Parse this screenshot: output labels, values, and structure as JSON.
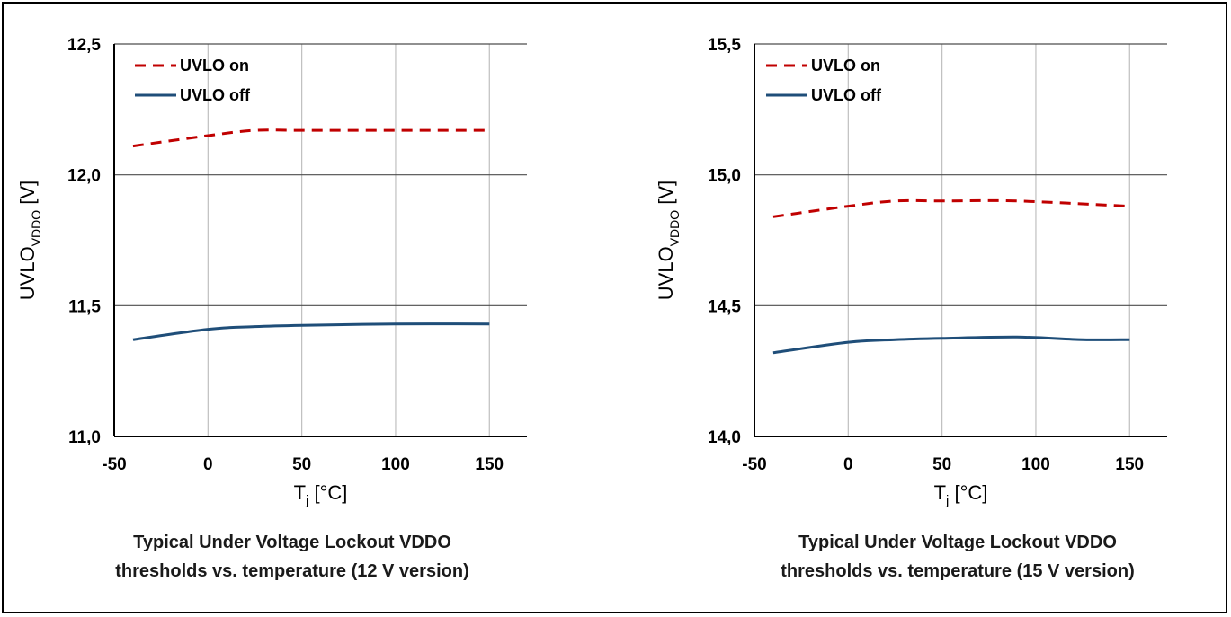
{
  "chart_data": [
    {
      "type": "line",
      "caption_line1": "Typical Under Voltage Lockout VDDO",
      "caption_line2": "thresholds vs. temperature (12 V version)",
      "ylabel_main": "UVLO",
      "ylabel_sub": "VDDO",
      "ylabel_unit": " [V]",
      "xlabel_main": "T",
      "xlabel_sub": "j",
      "xlabel_unit": " [°C]",
      "xlim": [
        -50,
        170
      ],
      "ylim": [
        11.0,
        12.5
      ],
      "xticks": [
        -50,
        0,
        50,
        100,
        150
      ],
      "xtick_labels": [
        "-50",
        "0",
        "50",
        "100",
        "150"
      ],
      "yticks": [
        11.0,
        11.5,
        12.0,
        12.5
      ],
      "ytick_labels": [
        "11,0",
        "11,5",
        "12,0",
        "12,5"
      ],
      "grid": "major",
      "legend_position": "top-left",
      "series": [
        {
          "name": "UVLO on",
          "color": "#c00000",
          "dash": "dashed",
          "x": [
            -40,
            0,
            25,
            50,
            100,
            150
          ],
          "y": [
            12.11,
            12.15,
            12.17,
            12.17,
            12.17,
            12.17
          ]
        },
        {
          "name": "UVLO off",
          "color": "#1f4e79",
          "dash": "solid",
          "x": [
            -40,
            0,
            25,
            50,
            100,
            150
          ],
          "y": [
            11.37,
            11.41,
            11.42,
            11.425,
            11.43,
            11.43
          ]
        }
      ]
    },
    {
      "type": "line",
      "caption_line1": "Typical Under Voltage Lockout VDDO",
      "caption_line2": "thresholds vs. temperature (15 V version)",
      "ylabel_main": "UVLO",
      "ylabel_sub": "VDDO",
      "ylabel_unit": " [V]",
      "xlabel_main": "T",
      "xlabel_sub": "j",
      "xlabel_unit": " [°C]",
      "xlim": [
        -50,
        170
      ],
      "ylim": [
        14.0,
        15.5
      ],
      "xticks": [
        -50,
        0,
        50,
        100,
        150
      ],
      "xtick_labels": [
        "-50",
        "0",
        "50",
        "100",
        "150"
      ],
      "yticks": [
        14.0,
        14.5,
        15.0,
        15.5
      ],
      "ytick_labels": [
        "14,0",
        "14,5",
        "15,0",
        "15,5"
      ],
      "grid": "major",
      "legend_position": "top-left",
      "series": [
        {
          "name": "UVLO on",
          "color": "#c00000",
          "dash": "dashed",
          "x": [
            -40,
            0,
            25,
            50,
            90,
            150
          ],
          "y": [
            14.84,
            14.88,
            14.9,
            14.9,
            14.9,
            14.88
          ]
        },
        {
          "name": "UVLO off",
          "color": "#1f4e79",
          "dash": "solid",
          "x": [
            -40,
            0,
            25,
            50,
            90,
            125,
            150
          ],
          "y": [
            14.32,
            14.36,
            14.37,
            14.375,
            14.38,
            14.37,
            14.37
          ]
        }
      ]
    }
  ]
}
